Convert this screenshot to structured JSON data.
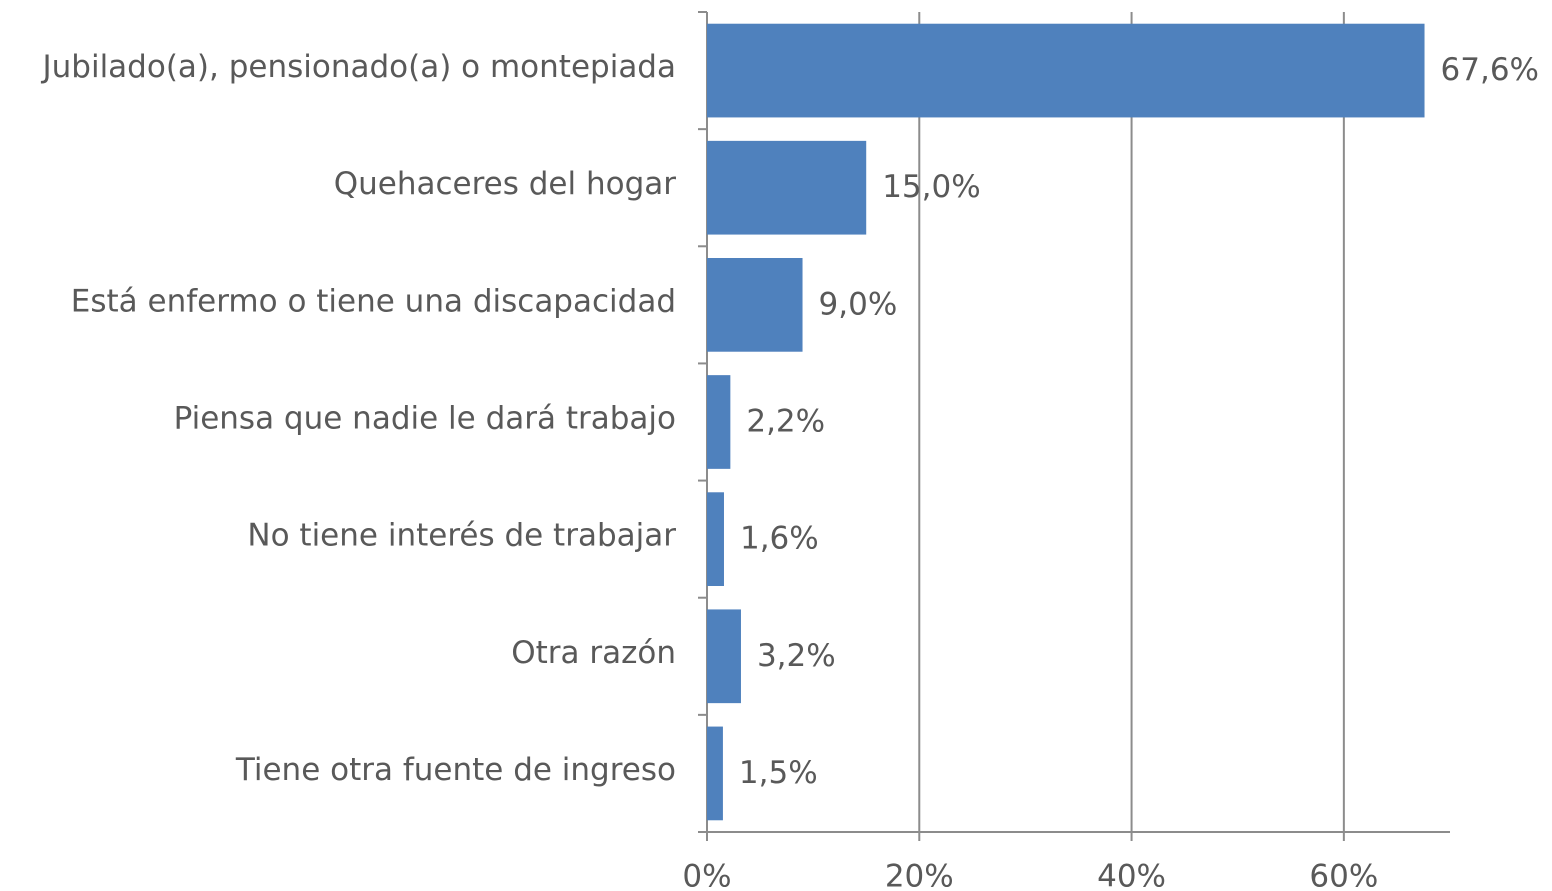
{
  "chart_data": {
    "type": "bar",
    "orientation": "horizontal",
    "categories": [
      "Jubilado(a), pensionado(a) o montepiada",
      "Quehaceres del hogar",
      "Está enfermo o tiene una discapacidad",
      "Piensa que nadie le dará trabajo",
      "No tiene interés de trabajar",
      "Otra razón",
      "Tiene otra fuente de ingreso"
    ],
    "values": [
      67.6,
      15.0,
      9.0,
      2.2,
      1.6,
      3.2,
      1.5
    ],
    "value_labels": [
      "67,6%",
      "15,0%",
      "9,0%",
      "2,2%",
      "1,6%",
      "3,2%",
      "1,5%"
    ],
    "color": "#4f81bd",
    "xlim": [
      0,
      70
    ],
    "xticks": [
      {
        "value": 0,
        "label": "0%"
      },
      {
        "value": 20,
        "label": "20%"
      },
      {
        "value": 40,
        "label": "40%"
      },
      {
        "value": 60,
        "label": "60%"
      }
    ],
    "grid": true
  }
}
